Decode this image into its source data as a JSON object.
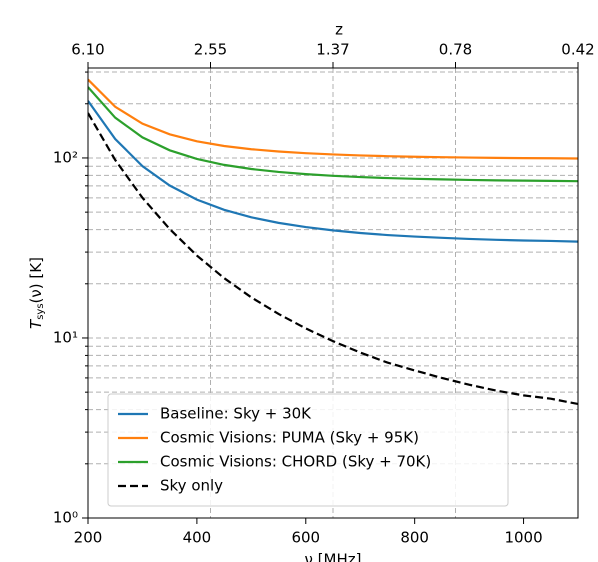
{
  "chart_data": {
    "type": "line",
    "xlabel": "ν [MHz]",
    "x2label": "z",
    "ylabel": {
      "symbol": "T",
      "subscript": "sys",
      "rest": "(ν) [K]"
    },
    "x": [
      200,
      250,
      300,
      350,
      400,
      450,
      500,
      550,
      600,
      650,
      700,
      750,
      800,
      850,
      900,
      950,
      1000,
      1050,
      1100
    ],
    "series": [
      {
        "name": "Baseline: Sky + 30K",
        "color": "#1f77b4",
        "linestyle": "solid",
        "values": [
          207.6,
          127.4,
          90.1,
          70.3,
          58.7,
          51.5,
          46.8,
          43.6,
          41.3,
          39.6,
          38.3,
          37.3,
          36.6,
          36.0,
          35.5,
          35.1,
          34.8,
          34.6,
          34.3
        ]
      },
      {
        "name": "Cosmic Visions: PUMA (Sky + 95K)",
        "color": "#ff7f0e",
        "linestyle": "solid",
        "values": [
          272.6,
          192.4,
          155.1,
          135.3,
          123.7,
          116.5,
          111.8,
          108.6,
          106.3,
          104.6,
          103.3,
          102.3,
          101.6,
          101.0,
          100.5,
          100.1,
          99.8,
          99.6,
          99.3
        ]
      },
      {
        "name": "Cosmic Visions: CHORD (Sky + 70K)",
        "color": "#2ca02c",
        "linestyle": "solid",
        "values": [
          247.6,
          167.4,
          130.1,
          110.3,
          98.7,
          91.5,
          86.8,
          83.6,
          81.3,
          79.6,
          78.3,
          77.3,
          76.6,
          76.0,
          75.5,
          75.1,
          74.8,
          74.6,
          74.3
        ]
      },
      {
        "name": "Sky only",
        "color": "#000000",
        "linestyle": "dashed",
        "values": [
          177.6,
          97.4,
          60.1,
          40.3,
          28.7,
          21.5,
          16.8,
          13.6,
          11.3,
          9.6,
          8.3,
          7.3,
          6.6,
          6.0,
          5.5,
          5.1,
          4.8,
          4.6,
          4.3
        ]
      }
    ],
    "xlim": [
      200,
      1100
    ],
    "xticks": [
      200,
      400,
      600,
      800,
      1000
    ],
    "x2ticks": [
      {
        "value": 200,
        "label": "6.10"
      },
      {
        "value": 425,
        "label": "2.55"
      },
      {
        "value": 650,
        "label": "1.37"
      },
      {
        "value": 875,
        "label": "0.78"
      },
      {
        "value": 1100,
        "label": "0.42"
      }
    ],
    "ylim": [
      1,
      316
    ],
    "yscale": "log",
    "yticks": [
      {
        "value": 1,
        "label": "10⁰"
      },
      {
        "value": 10,
        "label": "10¹"
      },
      {
        "value": 100,
        "label": "10²"
      }
    ],
    "y_minor_ticks": [
      2,
      3,
      4,
      5,
      6,
      7,
      8,
      9,
      20,
      30,
      40,
      50,
      60,
      70,
      80,
      90,
      200,
      300
    ],
    "grid": true,
    "legend": "lower left"
  }
}
